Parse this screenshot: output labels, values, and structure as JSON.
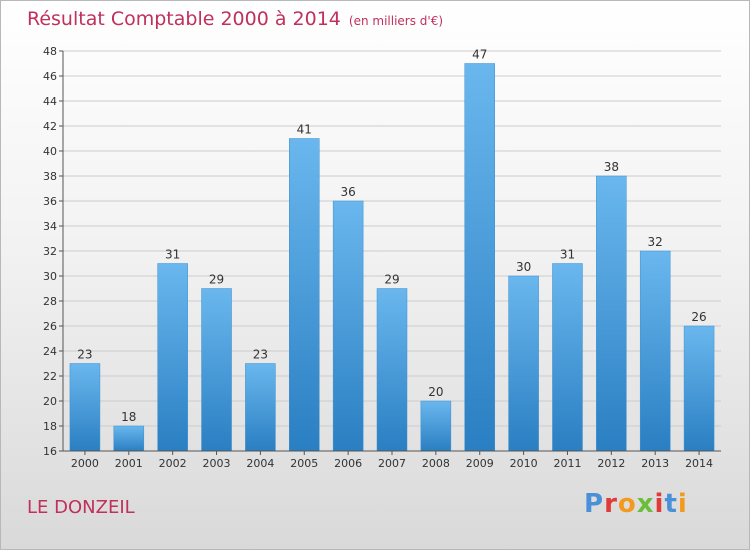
{
  "header": {
    "title": "Résultat Comptable 2000 à 2014",
    "unit": "(en milliers d'€)"
  },
  "footer": {
    "commune": "LE DONZEIL",
    "logo_text": "Proxiti",
    "logo_colors": [
      "#4a90d9",
      "#e03a3a",
      "#f39a1e",
      "#6abf3a",
      "#e03a3a",
      "#4a90d9",
      "#f39a1e"
    ]
  },
  "colors": {
    "title": "#c0305c",
    "bar_top": "#6ab7ee",
    "bar_bottom": "#2a7fc2",
    "grid": "#cccccc",
    "text": "#333333"
  },
  "chart_data": {
    "type": "bar",
    "title": "Résultat Comptable 2000 à 2014",
    "categories": [
      "2000",
      "2001",
      "2002",
      "2003",
      "2004",
      "2005",
      "2006",
      "2007",
      "2008",
      "2009",
      "2010",
      "2011",
      "2012",
      "2013",
      "2014"
    ],
    "values": [
      23,
      18,
      31,
      29,
      23,
      41,
      36,
      29,
      20,
      47,
      30,
      31,
      38,
      32,
      26
    ],
    "ylim": [
      16,
      48
    ],
    "yticks": [
      16,
      18,
      20,
      22,
      24,
      26,
      28,
      30,
      32,
      34,
      36,
      38,
      40,
      42,
      44,
      46,
      48
    ],
    "grid": true
  }
}
